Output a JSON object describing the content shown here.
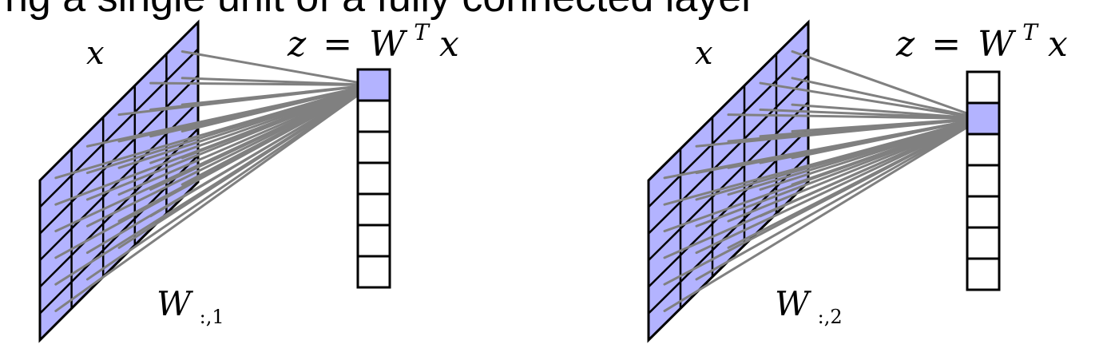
{
  "header_fragment": "ng a single unit of a fully connected layer",
  "panels": [
    {
      "input_label": "x",
      "output_label": {
        "lhs": "z",
        "eq": "=",
        "mat": "W",
        "sup": "T",
        "vec": "x"
      },
      "weight_label": {
        "main": "W",
        "sub": ":,1"
      },
      "input_grid": {
        "cols": 5,
        "rows": 6
      },
      "output_cells": 7,
      "active_output_index": 0
    },
    {
      "input_label": "x",
      "output_label": {
        "lhs": "z",
        "eq": "=",
        "mat": "W",
        "sup": "T",
        "vec": "x"
      },
      "weight_label": {
        "main": "W",
        "sub": ":,2"
      },
      "input_grid": {
        "cols": 5,
        "rows": 6
      },
      "output_cells": 7,
      "active_output_index": 1
    }
  ],
  "colors": {
    "grid_fill": "#b3b3ff",
    "cell_border": "#000000",
    "connection": "#808080",
    "active_fill": "#b3b3ff",
    "inactive_fill": "#ffffff"
  }
}
